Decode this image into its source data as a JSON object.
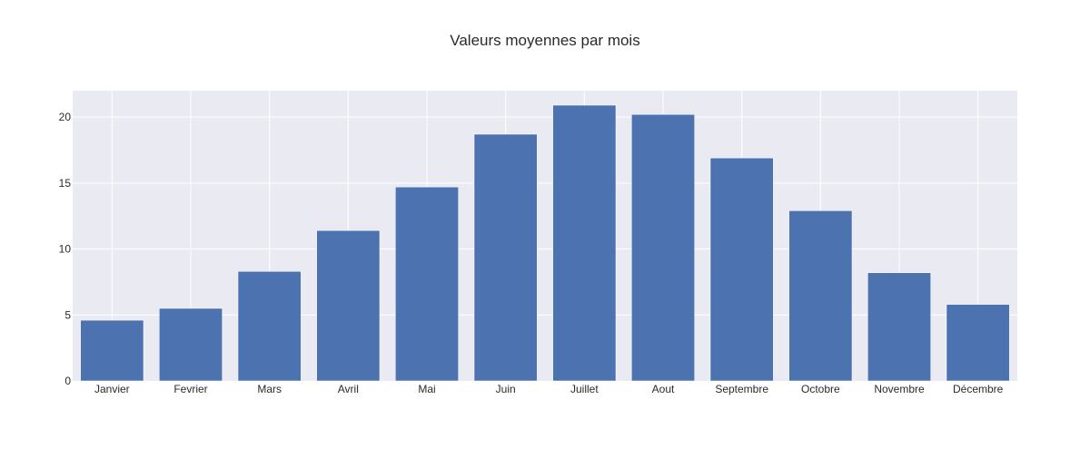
{
  "chart_data": {
    "type": "bar",
    "title": "Valeurs moyennes par mois",
    "xlabel": "",
    "ylabel": "",
    "categories": [
      "Janvier",
      "Fevrier",
      "Mars",
      "Avril",
      "Mai",
      "Juin",
      "Juillet",
      "Aout",
      "Septembre",
      "Octobre",
      "Novembre",
      "Décembre"
    ],
    "values": [
      4.6,
      5.5,
      8.3,
      11.4,
      14.7,
      18.7,
      20.9,
      20.2,
      16.9,
      12.9,
      8.2,
      5.8
    ],
    "ylim": [
      0,
      22
    ],
    "yticks": [
      0,
      5,
      10,
      15,
      20
    ],
    "grid": true,
    "legend": "none",
    "colors": {
      "bar": "#4c72b0",
      "plot_background": "#eaeaf2",
      "grid": "#ffffff",
      "text": "#2a2a2a"
    }
  }
}
